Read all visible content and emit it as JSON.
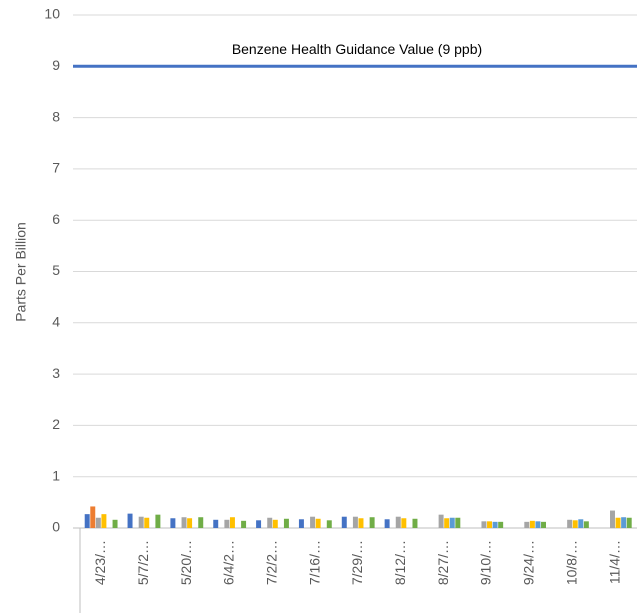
{
  "chart_data": {
    "type": "bar",
    "ylabel": "Parts Per Billion",
    "categories": [
      "4/23/…",
      "5/7/2…",
      "5/20/…",
      "6/4/2…",
      "7/2/2…",
      "7/16/…",
      "7/29/…",
      "8/12/…",
      "8/27/…",
      "9/10/…",
      "9/24/…",
      "10/8/…",
      "11/4/…"
    ],
    "series": [
      {
        "color": "#4472c4",
        "values": [
          0.27,
          0.28,
          0.19,
          0.16,
          0.15,
          0.17,
          0.22,
          0.17,
          null,
          null,
          null,
          null,
          null
        ]
      },
      {
        "color": "#ed7d31",
        "values": [
          0.42,
          null,
          null,
          null,
          null,
          null,
          null,
          null,
          null,
          null,
          null,
          null,
          null
        ]
      },
      {
        "color": "#a5a5a5",
        "values": [
          0.2,
          0.22,
          0.21,
          0.16,
          0.2,
          0.22,
          0.22,
          0.22,
          0.26,
          0.13,
          0.12,
          0.16,
          0.34
        ]
      },
      {
        "color": "#ffc000",
        "values": [
          0.27,
          0.2,
          0.19,
          0.21,
          0.16,
          0.18,
          0.19,
          0.19,
          0.19,
          0.13,
          0.14,
          0.15,
          0.2
        ]
      },
      {
        "color": "#5b9bd5",
        "values": [
          null,
          null,
          null,
          null,
          null,
          null,
          null,
          null,
          0.2,
          0.12,
          0.13,
          0.17,
          0.21
        ]
      },
      {
        "color": "#70ad47",
        "values": [
          0.16,
          0.26,
          0.21,
          0.14,
          0.18,
          0.15,
          0.21,
          0.18,
          0.2,
          0.12,
          0.12,
          0.13,
          0.2
        ]
      }
    ],
    "reference_line": {
      "value": 9,
      "label": "Benzene Health Guidance Value (9 ppb)",
      "color": "#4472c4"
    },
    "ylim": [
      0,
      10
    ],
    "yticks": [
      0,
      1,
      2,
      3,
      4,
      5,
      6,
      7,
      8,
      9,
      10
    ],
    "grid": true
  }
}
